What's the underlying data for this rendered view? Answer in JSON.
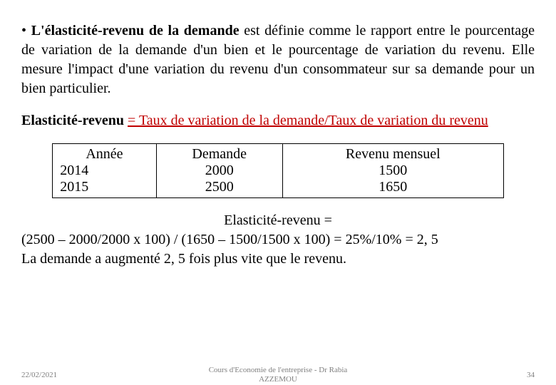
{
  "paragraph": {
    "bullet": "•",
    "term": "L'élasticité-revenu de la demande",
    "rest": " est définie comme le rapport entre le pourcentage de variation de la demande d'un bien et le pourcentage de variation du revenu. Elle mesure l'impact d'une variation du revenu d'un consommateur sur sa demande pour un bien particulier."
  },
  "formula": {
    "bold_label": "Elasticité-revenu ",
    "red_text": "= Taux de variation de la demande/Taux de variation du revenu"
  },
  "table": {
    "headers": [
      "Année",
      "Demande",
      "Revenu mensuel"
    ],
    "rows": [
      [
        "2014",
        "2000",
        "1500"
      ],
      [
        "2015",
        "2500",
        "1650"
      ]
    ]
  },
  "calc": {
    "title": "Elasticité-revenu =",
    "line2": "(2500 – 2000/2000 x 100) / (1650 – 1500/1500 x 100) = 25%/10% = 2, 5",
    "line3": "La demande a augmenté 2, 5 fois plus vite que le revenu."
  },
  "footer": {
    "date": "22/02/2021",
    "center1": "Cours d'Economie de l'entreprise - Dr Rabia",
    "center2": "AZZEMOU",
    "page": "34"
  },
  "colors": {
    "red": "#c00000",
    "text": "#000000",
    "footer_gray": "#7f7f7f",
    "bg": "#ffffff"
  }
}
